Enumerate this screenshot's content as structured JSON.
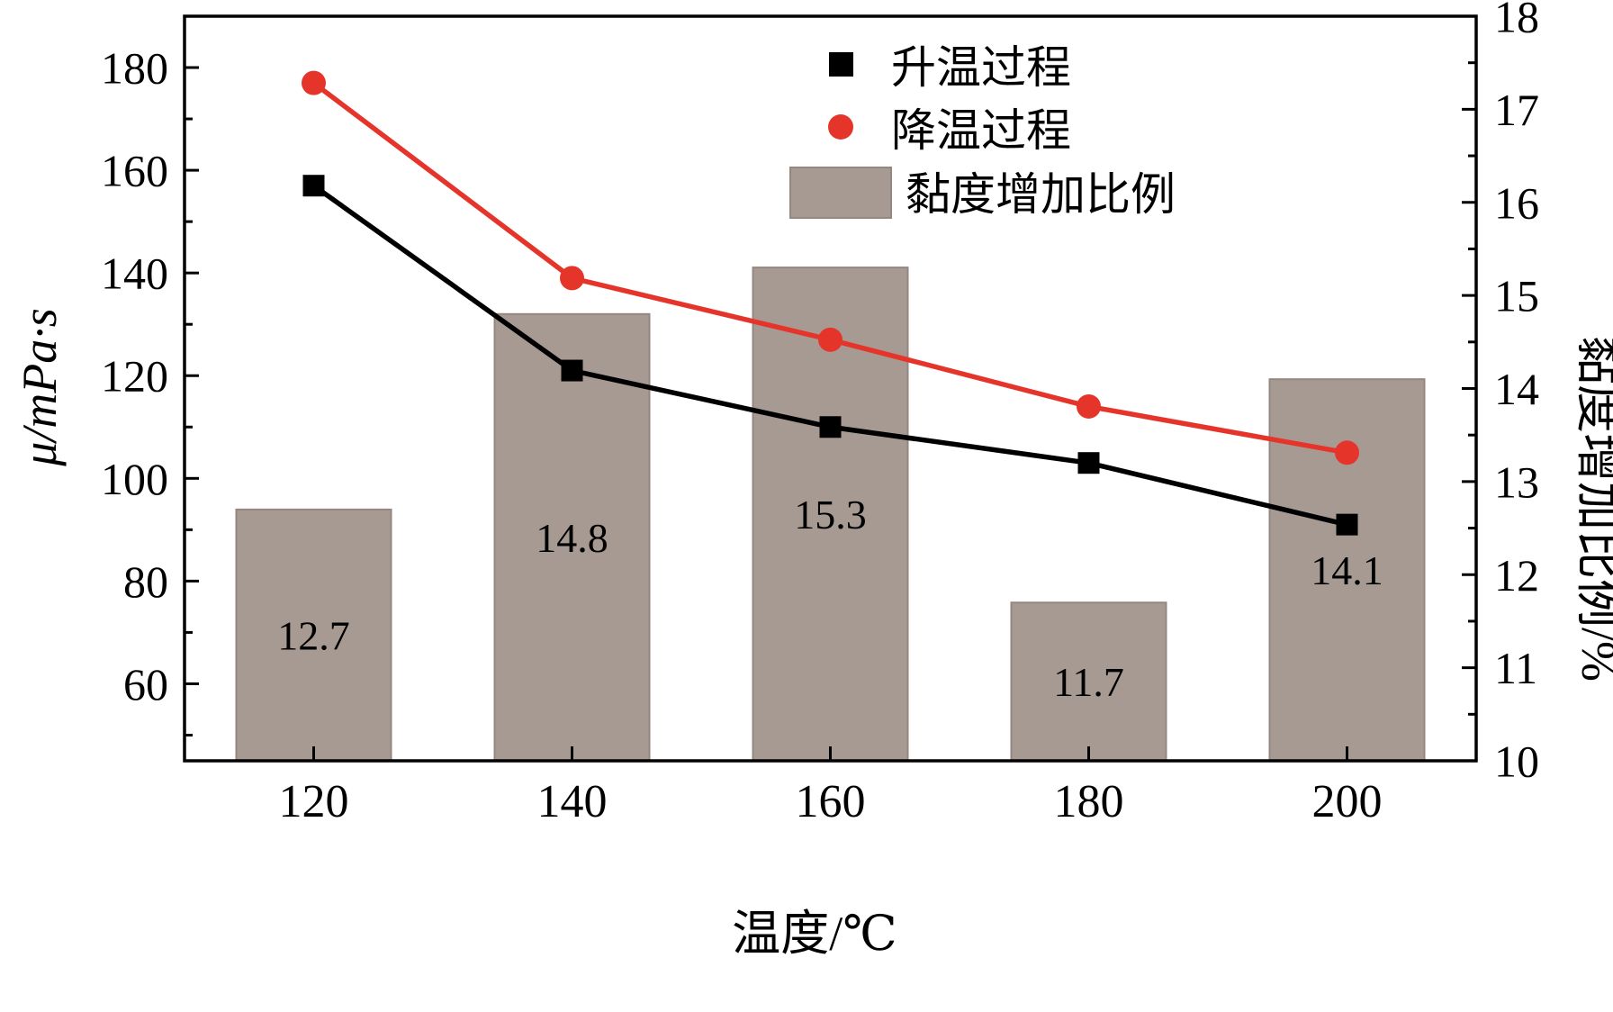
{
  "chart": {
    "xlabel": "温度/℃",
    "ylabel_left": "μ/mPa·s",
    "ylabel_right": "黏度增加比例/%",
    "legend": {
      "heating": "升温过程",
      "cooling": "降温过程",
      "bars": "黏度增加比例"
    },
    "colors": {
      "heating_line": "#000000",
      "cooling_line": "#e5352b",
      "bar_fill": "#a79a93",
      "bar_stroke": "#948780",
      "axis": "#000000"
    }
  },
  "chart_data": {
    "type": "combo",
    "categories": [
      120,
      140,
      160,
      180,
      200
    ],
    "series": [
      {
        "name": "升温过程",
        "type": "line",
        "axis": "left",
        "marker": "square",
        "color": "#000000",
        "values": [
          157,
          121,
          110,
          103,
          91
        ]
      },
      {
        "name": "降温过程",
        "type": "line",
        "axis": "left",
        "marker": "circle",
        "color": "#e5352b",
        "values": [
          177,
          139,
          127,
          114,
          105
        ]
      },
      {
        "name": "黏度增加比例",
        "type": "bar",
        "axis": "right",
        "color": "#a79a93",
        "values": [
          12.7,
          14.8,
          15.3,
          11.7,
          14.1
        ],
        "value_labels": [
          "12.7",
          "14.8",
          "15.3",
          "11.7",
          "14.1"
        ]
      }
    ],
    "x_axis": {
      "label": "温度/℃",
      "tick_labels": [
        "120",
        "140",
        "160",
        "180",
        "200"
      ]
    },
    "left_axis": {
      "label": "μ/mPa·s",
      "min": 45,
      "max": 190,
      "ticks": [
        60,
        80,
        100,
        120,
        140,
        160,
        180
      ],
      "minor_step": 10
    },
    "right_axis": {
      "label": "黏度增加比例/%",
      "min": 10,
      "max": 18,
      "ticks": [
        10,
        11,
        12,
        13,
        14,
        15,
        16,
        17,
        18
      ],
      "minor_step": 0.5
    },
    "grid": false,
    "legend_position": "top-center-inside"
  }
}
